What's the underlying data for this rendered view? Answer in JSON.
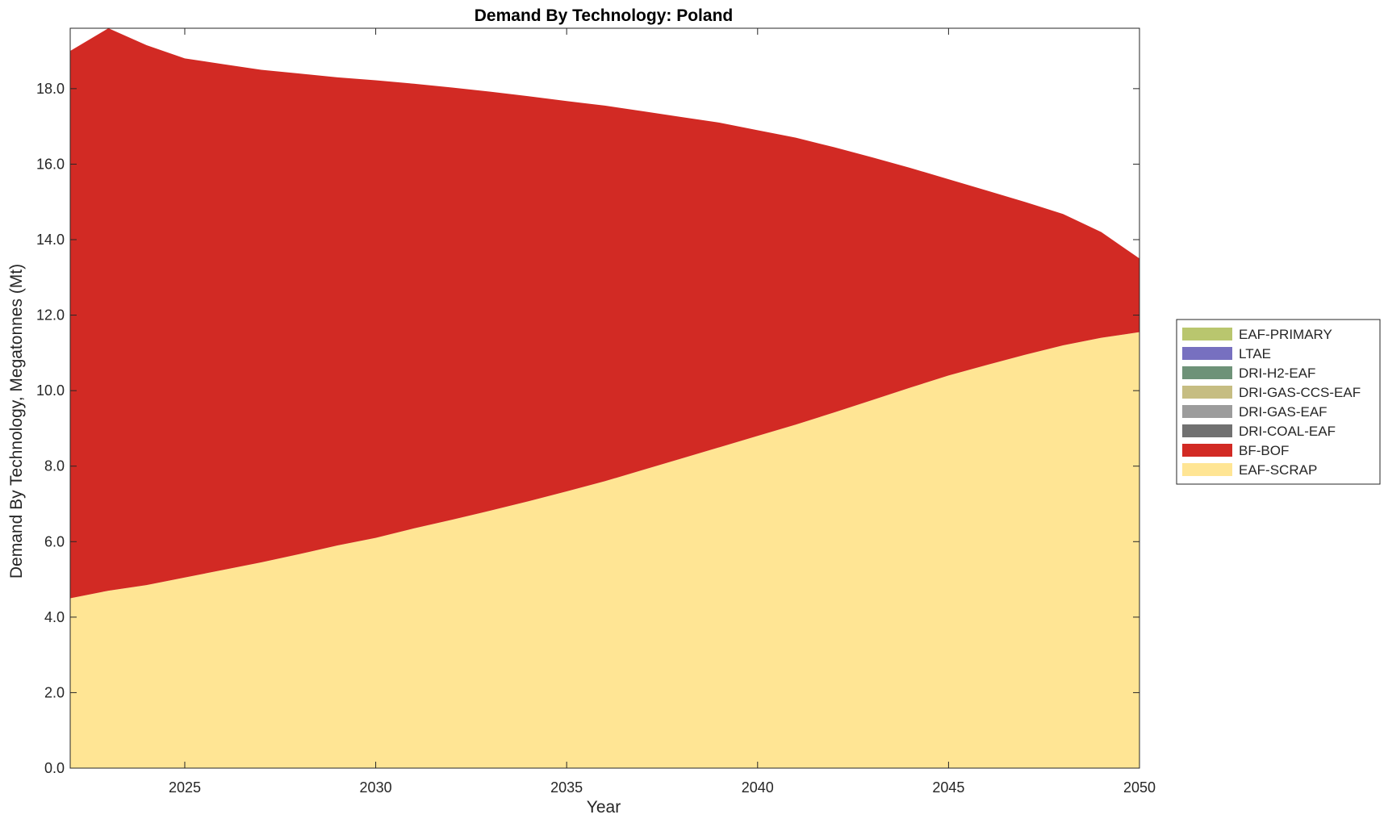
{
  "chart_data": {
    "type": "area",
    "stacked": true,
    "title": "Demand By Technology: Poland",
    "xlabel": "Year",
    "ylabel": "Demand By Technology, Megatonnes (Mt)",
    "xlim": [
      2022,
      2050
    ],
    "ylim": [
      0,
      19.6
    ],
    "xticks": [
      2025,
      2030,
      2035,
      2040,
      2045,
      2050
    ],
    "yticks": [
      0,
      2,
      4,
      6,
      8,
      10,
      12,
      14,
      16,
      18
    ],
    "ytick_labels": [
      "0.0",
      "2.0",
      "4.0",
      "6.0",
      "8.0",
      "10.0",
      "12.0",
      "14.0",
      "16.0",
      "18.0"
    ],
    "grid": false,
    "legend_position": "right",
    "x": [
      2022,
      2023,
      2024,
      2025,
      2026,
      2027,
      2028,
      2029,
      2030,
      2031,
      2032,
      2033,
      2034,
      2035,
      2036,
      2037,
      2038,
      2039,
      2040,
      2041,
      2042,
      2043,
      2044,
      2045,
      2046,
      2047,
      2048,
      2049,
      2050
    ],
    "series": [
      {
        "name": "EAF-SCRAP",
        "color": "#FFE594",
        "values": [
          4.5,
          4.7,
          4.85,
          5.05,
          5.25,
          5.45,
          5.67,
          5.9,
          6.1,
          6.35,
          6.58,
          6.82,
          7.07,
          7.33,
          7.6,
          7.9,
          8.2,
          8.5,
          8.8,
          9.1,
          9.42,
          9.75,
          10.08,
          10.4,
          10.68,
          10.95,
          11.2,
          11.4,
          11.55
        ]
      },
      {
        "name": "BF-BOF",
        "color": "#D22A24",
        "values": [
          14.5,
          14.9,
          14.3,
          13.75,
          13.4,
          13.05,
          12.73,
          12.4,
          12.12,
          11.78,
          11.45,
          11.1,
          10.73,
          10.34,
          9.95,
          9.5,
          9.05,
          8.6,
          8.1,
          7.6,
          7.03,
          6.43,
          5.82,
          5.2,
          4.62,
          4.05,
          3.48,
          2.8,
          1.95
        ]
      },
      {
        "name": "DRI-COAL-EAF",
        "color": "#717171",
        "values": [
          0,
          0,
          0,
          0,
          0,
          0,
          0,
          0,
          0,
          0,
          0,
          0,
          0,
          0,
          0,
          0,
          0,
          0,
          0,
          0,
          0,
          0,
          0,
          0,
          0,
          0,
          0,
          0,
          0
        ]
      },
      {
        "name": "DRI-GAS-EAF",
        "color": "#9C9C9C",
        "values": [
          0,
          0,
          0,
          0,
          0,
          0,
          0,
          0,
          0,
          0,
          0,
          0,
          0,
          0,
          0,
          0,
          0,
          0,
          0,
          0,
          0,
          0,
          0,
          0,
          0,
          0,
          0,
          0,
          0
        ]
      },
      {
        "name": "DRI-GAS-CCS-EAF",
        "color": "#C6BD82",
        "values": [
          0,
          0,
          0,
          0,
          0,
          0,
          0,
          0,
          0,
          0,
          0,
          0,
          0,
          0,
          0,
          0,
          0,
          0,
          0,
          0,
          0,
          0,
          0,
          0,
          0,
          0,
          0,
          0,
          0
        ]
      },
      {
        "name": "DRI-H2-EAF",
        "color": "#6E9278",
        "values": [
          0,
          0,
          0,
          0,
          0,
          0,
          0,
          0,
          0,
          0,
          0,
          0,
          0,
          0,
          0,
          0,
          0,
          0,
          0,
          0,
          0,
          0,
          0,
          0,
          0,
          0,
          0,
          0,
          0
        ]
      },
      {
        "name": "LTAE",
        "color": "#7770C0",
        "values": [
          0,
          0,
          0,
          0,
          0,
          0,
          0,
          0,
          0,
          0,
          0,
          0,
          0,
          0,
          0,
          0,
          0,
          0,
          0,
          0,
          0,
          0,
          0,
          0,
          0,
          0,
          0,
          0,
          0
        ]
      },
      {
        "name": "EAF-PRIMARY",
        "color": "#B9C66E",
        "values": [
          0,
          0,
          0,
          0,
          0,
          0,
          0,
          0,
          0,
          0,
          0,
          0,
          0,
          0,
          0,
          0,
          0,
          0,
          0,
          0,
          0,
          0,
          0,
          0,
          0,
          0,
          0,
          0,
          0
        ]
      }
    ],
    "legend_order": [
      "EAF-PRIMARY",
      "LTAE",
      "DRI-H2-EAF",
      "DRI-GAS-CCS-EAF",
      "DRI-GAS-EAF",
      "DRI-COAL-EAF",
      "BF-BOF",
      "EAF-SCRAP"
    ]
  }
}
